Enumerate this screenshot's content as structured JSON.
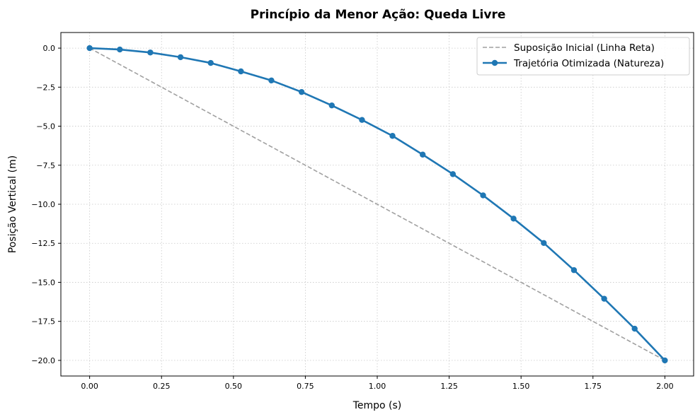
{
  "chart_data": {
    "type": "line",
    "title": "Princípio da Menor Ação: Queda Livre",
    "xlabel": "Tempo (s)",
    "ylabel": "Posição Vertical (m)",
    "xlim": [
      -0.1,
      2.1
    ],
    "ylim": [
      -21.0,
      1.0
    ],
    "xticks": [
      0.0,
      0.25,
      0.5,
      0.75,
      1.0,
      1.25,
      1.5,
      1.75,
      2.0
    ],
    "xtick_labels": [
      "0.00",
      "0.25",
      "0.50",
      "0.75",
      "1.00",
      "1.25",
      "1.50",
      "1.75",
      "2.00"
    ],
    "yticks": [
      0.0,
      -2.5,
      -5.0,
      -7.5,
      -10.0,
      -12.5,
      -15.0,
      -17.5,
      -20.0
    ],
    "ytick_labels": [
      "0.0",
      "−2.5",
      "−5.0",
      "−7.5",
      "−10.0",
      "−12.5",
      "−15.0",
      "−17.5",
      "−20.0"
    ],
    "grid": true,
    "legend_position": "top-right",
    "series": [
      {
        "name": "Suposição Inicial (Linha Reta)",
        "style": "dashed",
        "color": "#a0a0a0",
        "x": [
          0.0,
          2.0
        ],
        "y": [
          0.0,
          -20.0
        ]
      },
      {
        "name": "Trajetória Otimizada (Natureza)",
        "style": "solid-markers",
        "color": "#1f77b4",
        "x": [
          0.0,
          0.105,
          0.211,
          0.316,
          0.421,
          0.526,
          0.632,
          0.737,
          0.842,
          0.947,
          1.053,
          1.158,
          1.263,
          1.368,
          1.474,
          1.579,
          1.684,
          1.789,
          1.895,
          2.0
        ],
        "y": [
          0.0,
          -0.09,
          -0.28,
          -0.58,
          -0.95,
          -1.49,
          -2.07,
          -2.81,
          -3.67,
          -4.6,
          -5.62,
          -6.82,
          -8.07,
          -9.43,
          -10.92,
          -12.48,
          -14.22,
          -16.05,
          -17.97,
          -20.0
        ]
      }
    ]
  }
}
